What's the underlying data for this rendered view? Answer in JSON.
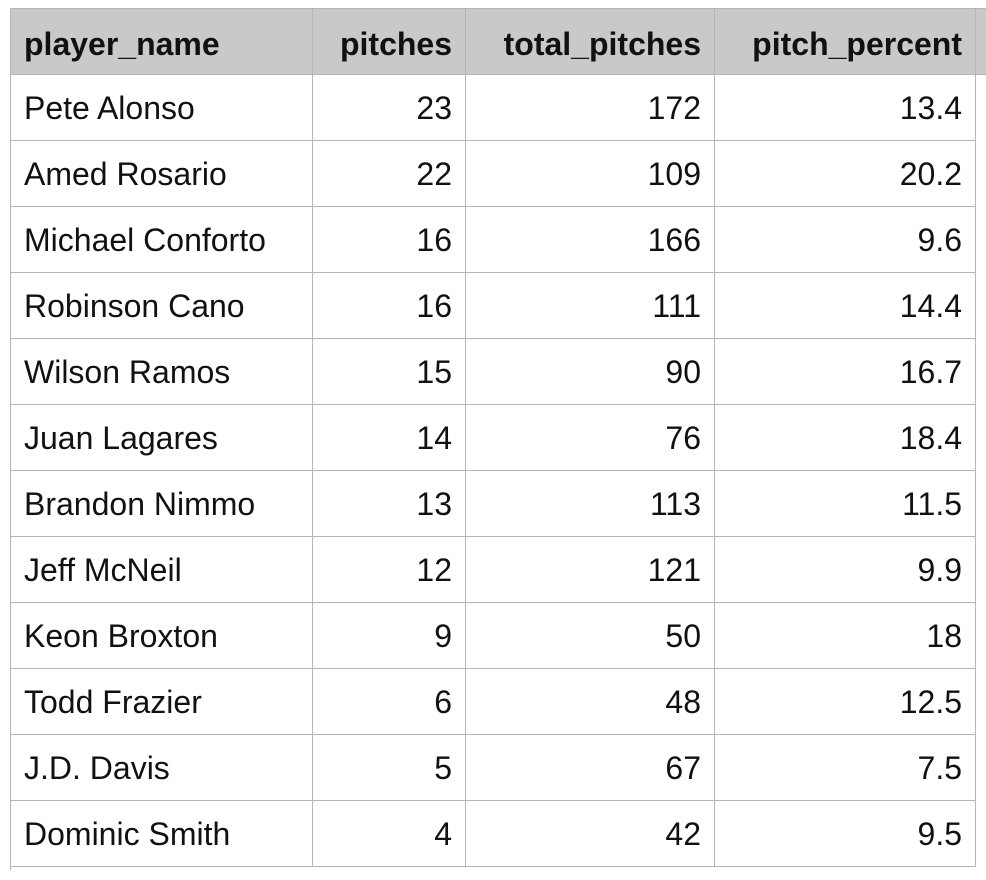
{
  "table": {
    "columns": [
      "player_name",
      "pitches",
      "total_pitches",
      "pitch_percent"
    ],
    "rows": [
      [
        "Pete Alonso",
        23,
        172,
        13.4
      ],
      [
        "Amed Rosario",
        22,
        109,
        20.2
      ],
      [
        "Michael Conforto",
        16,
        166,
        9.6
      ],
      [
        "Robinson Cano",
        16,
        111,
        14.4
      ],
      [
        "Wilson Ramos",
        15,
        90,
        16.7
      ],
      [
        "Juan Lagares",
        14,
        76,
        18.4
      ],
      [
        "Brandon Nimmo",
        13,
        113,
        11.5
      ],
      [
        "Jeff McNeil",
        12,
        121,
        9.9
      ],
      [
        "Keon Broxton",
        9,
        50,
        18
      ],
      [
        "Todd Frazier",
        6,
        48,
        12.5
      ],
      [
        "J.D. Davis",
        5,
        67,
        7.5
      ],
      [
        "Dominic Smith",
        4,
        42,
        9.5
      ]
    ]
  }
}
